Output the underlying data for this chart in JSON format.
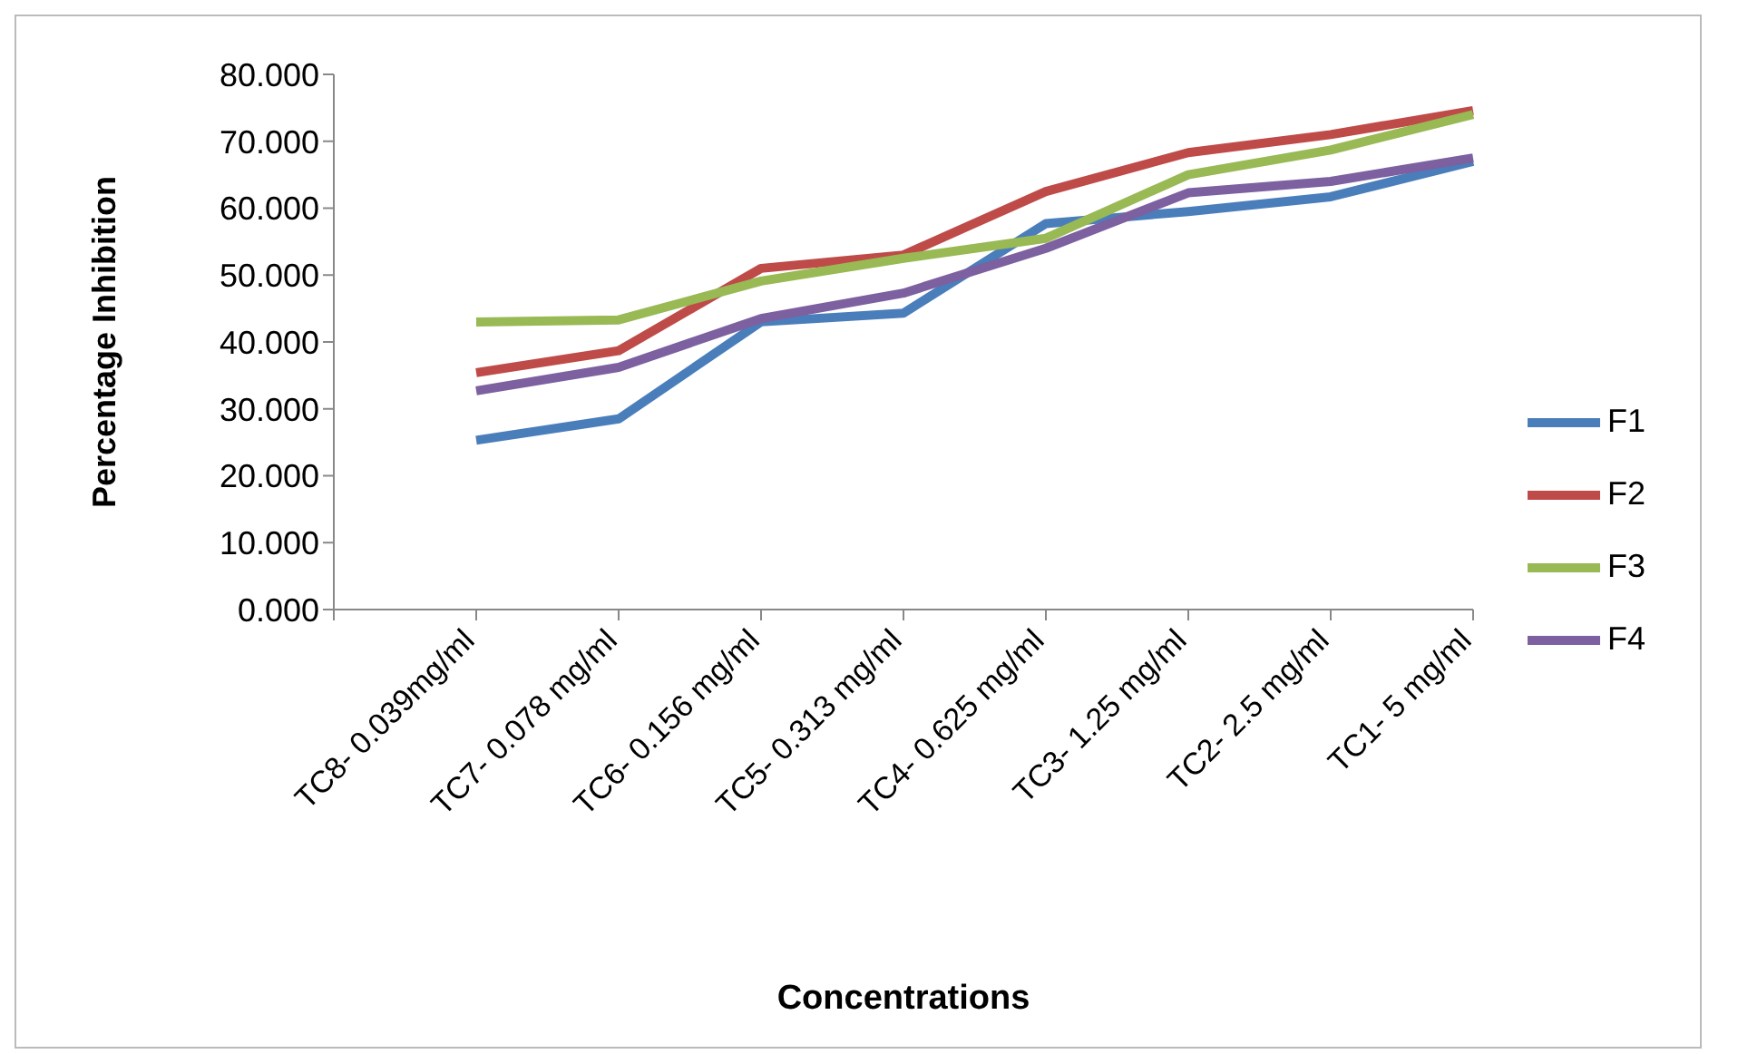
{
  "chart_data": {
    "type": "line",
    "xlabel": "Concentrations",
    "ylabel": "Percentage Inhibition",
    "categories": [
      null,
      "TC8- 0.039mg/ml",
      "TC7- 0.078 mg/ml",
      "TC6- 0.156 mg/ml",
      "TC5- 0.313 mg/ml",
      "TC4- 0.625 mg/ml",
      "TC3- 1.25 mg/ml",
      "TC2- 2.5 mg/ml",
      "TC1- 5 mg/ml"
    ],
    "series": [
      {
        "name": "F1",
        "color": "#4a7ebb",
        "values": [
          null,
          25.3,
          28.5,
          43.0,
          44.3,
          57.7,
          59.5,
          61.7,
          67.0
        ]
      },
      {
        "name": "F2",
        "color": "#be4b48",
        "values": [
          null,
          35.4,
          38.7,
          51.0,
          53.0,
          62.5,
          68.3,
          71.0,
          74.6
        ]
      },
      {
        "name": "F3",
        "color": "#98b954",
        "values": [
          null,
          43.0,
          43.3,
          49.1,
          52.5,
          55.5,
          65.0,
          68.7,
          74.0
        ]
      },
      {
        "name": "F4",
        "color": "#7d60a0",
        "values": [
          null,
          32.7,
          36.2,
          43.5,
          47.3,
          54.0,
          62.3,
          64.0,
          67.5
        ]
      }
    ],
    "ylim": [
      0,
      80
    ],
    "yticks": [
      {
        "value": 0,
        "label": "0.000"
      },
      {
        "value": 10,
        "label": "10.000"
      },
      {
        "value": 20,
        "label": "20.000"
      },
      {
        "value": 30,
        "label": "30.000"
      },
      {
        "value": 40,
        "label": "40.000"
      },
      {
        "value": 50,
        "label": "50.000"
      },
      {
        "value": 60,
        "label": "60.000"
      },
      {
        "value": 70,
        "label": "70.000"
      },
      {
        "value": 80,
        "label": "80.000"
      }
    ],
    "grid": false,
    "legend": "right",
    "marker": "none",
    "line_style": "solid"
  }
}
